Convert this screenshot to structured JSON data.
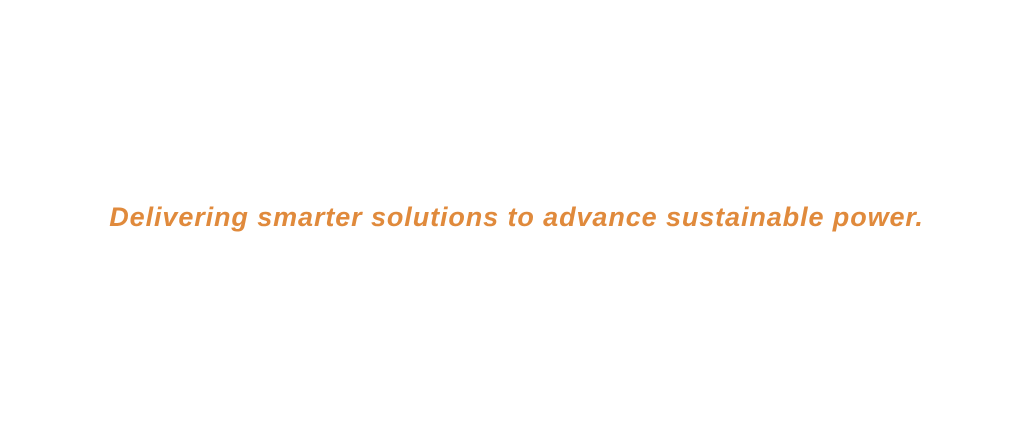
{
  "tagline": {
    "text": "Delivering smarter solutions to advance sustainable power.",
    "color": "#e08a3c"
  },
  "background_color": "#ffffff"
}
